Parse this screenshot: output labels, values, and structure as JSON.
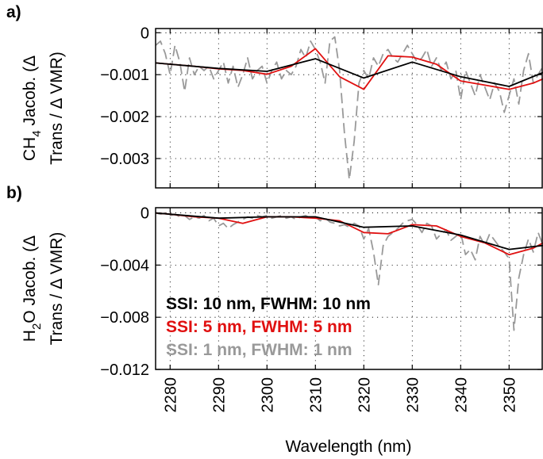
{
  "chart_data": [
    {
      "panel_label": "a)",
      "type": "line",
      "ylabel_line1": "CH",
      "ylabel_sub": "4",
      "ylabel_line1_rest": " Jacob. (Δ",
      "ylabel_line2": "Trans / Δ VMR)",
      "xlim": [
        2277,
        2357
      ],
      "ylim": [
        -0.0037,
        0.0001
      ],
      "yticks": [
        0,
        -0.001,
        -0.002,
        -0.003
      ],
      "ytick_labels": [
        "0",
        "−0.001",
        "−0.002",
        "−0.003"
      ],
      "xticks": [
        2280,
        2290,
        2300,
        2310,
        2320,
        2330,
        2340,
        2350
      ],
      "grid": true,
      "series": [
        {
          "name": "SSI: 1 nm, FWHM: 1 nm",
          "color": "#999999",
          "dash": "dashed",
          "x": [
            2277,
            2278,
            2279,
            2280,
            2281,
            2282,
            2283,
            2284,
            2285,
            2286,
            2287,
            2288,
            2289,
            2290,
            2291,
            2292,
            2293,
            2294,
            2295,
            2296,
            2297,
            2298,
            2299,
            2300,
            2301,
            2302,
            2303,
            2304,
            2305,
            2306,
            2307,
            2308,
            2309,
            2310,
            2311,
            2312,
            2313,
            2314,
            2315,
            2316,
            2317,
            2318,
            2319,
            2320,
            2321,
            2322,
            2323,
            2324,
            2325,
            2326,
            2327,
            2328,
            2329,
            2330,
            2331,
            2332,
            2333,
            2334,
            2335,
            2336,
            2337,
            2338,
            2339,
            2340,
            2341,
            2342,
            2343,
            2344,
            2345,
            2346,
            2347,
            2348,
            2349,
            2350,
            2351,
            2352,
            2353,
            2354,
            2355,
            2356,
            2357
          ],
          "y": [
            -0.0003,
            -0.0002,
            -0.0005,
            -0.001,
            -0.0003,
            -0.0007,
            -0.0014,
            -0.0006,
            -0.001,
            -0.0008,
            -0.0009,
            -0.0008,
            -0.0011,
            -0.0009,
            -0.0007,
            -0.0012,
            -0.0008,
            -0.0013,
            -0.001,
            -0.0006,
            -0.0011,
            -0.0009,
            -0.0008,
            -0.0012,
            -0.0009,
            -0.0007,
            -0.0011,
            -0.0009,
            -0.001,
            -0.0008,
            -0.0004,
            -0.0006,
            -0.0002,
            -0.0004,
            -0.0007,
            -0.0012,
            -0.0002,
            -0.0001,
            -0.0009,
            -0.0024,
            -0.0035,
            -0.0026,
            -0.0012,
            -0.0009,
            -0.0011,
            -0.0006,
            -0.0008,
            -0.0005,
            -0.0004,
            -0.0006,
            -0.0007,
            -0.0005,
            -0.0003,
            -0.0005,
            -0.0007,
            -0.0006,
            -0.0004,
            -0.0008,
            -0.0006,
            -0.0009,
            -0.0007,
            -0.0011,
            -0.0009,
            -0.0016,
            -0.0009,
            -0.0012,
            -0.0015,
            -0.001,
            -0.0013,
            -0.0016,
            -0.0012,
            -0.0014,
            -0.0019,
            -0.0015,
            -0.0011,
            -0.0017,
            -0.0009,
            -0.0005,
            -0.0012,
            -0.001,
            -0.0008
          ]
        },
        {
          "name": "SSI: 5 nm, FWHM: 5 nm",
          "color": "#e01010",
          "dash": "solid",
          "x": [
            2277,
            2280,
            2285,
            2290,
            2295,
            2300,
            2305,
            2310,
            2315,
            2320,
            2325,
            2330,
            2335,
            2340,
            2345,
            2350,
            2355,
            2357
          ],
          "y": [
            -0.00072,
            -0.00075,
            -0.0008,
            -0.00086,
            -0.0009,
            -0.00099,
            -0.0008,
            -0.00038,
            -0.00105,
            -0.00135,
            -0.00055,
            -0.00058,
            -0.00075,
            -0.00115,
            -0.00125,
            -0.00135,
            -0.0012,
            -0.0011
          ]
        },
        {
          "name": "SSI: 10 nm, FWHM: 10 nm",
          "color": "#000000",
          "dash": "solid",
          "x": [
            2277,
            2280,
            2290,
            2300,
            2310,
            2320,
            2330,
            2340,
            2350,
            2357
          ],
          "y": [
            -0.00072,
            -0.00075,
            -0.00085,
            -0.00092,
            -0.00062,
            -0.00108,
            -0.0007,
            -0.00105,
            -0.00128,
            -0.00095
          ]
        }
      ]
    },
    {
      "panel_label": "b)",
      "type": "line",
      "ylabel_line1": "H",
      "ylabel_sub": "2",
      "ylabel_line1_rest": "O Jacob. (Δ",
      "ylabel_line2": "Trans / Δ VMR)",
      "xlim": [
        2277,
        2357
      ],
      "ylim": [
        -0.012,
        0.0004
      ],
      "yticks": [
        0,
        -0.004,
        -0.008,
        -0.012
      ],
      "ytick_labels": [
        "0",
        "−0.004",
        "−0.008",
        "−0.012"
      ],
      "xticks": [
        2280,
        2290,
        2300,
        2310,
        2320,
        2330,
        2340,
        2350
      ],
      "xtick_labels": [
        "2280",
        "2290",
        "2300",
        "2310",
        "2320",
        "2330",
        "2340",
        "2350"
      ],
      "xlabel": "Wavelength (nm)",
      "grid": true,
      "legend": "lower-left",
      "series": [
        {
          "name": "SSI: 1 nm, FWHM: 1 nm",
          "color": "#999999",
          "dash": "dashed",
          "x": [
            2277,
            2278,
            2279,
            2280,
            2281,
            2282,
            2283,
            2284,
            2285,
            2286,
            2287,
            2288,
            2289,
            2290,
            2291,
            2292,
            2293,
            2294,
            2295,
            2296,
            2297,
            2298,
            2299,
            2300,
            2301,
            2302,
            2303,
            2304,
            2305,
            2306,
            2307,
            2308,
            2309,
            2310,
            2311,
            2312,
            2313,
            2314,
            2315,
            2316,
            2317,
            2318,
            2319,
            2320,
            2321,
            2322,
            2323,
            2324,
            2325,
            2326,
            2327,
            2328,
            2329,
            2330,
            2331,
            2332,
            2333,
            2334,
            2335,
            2336,
            2337,
            2338,
            2339,
            2340,
            2341,
            2342,
            2343,
            2344,
            2345,
            2346,
            2347,
            2348,
            2349,
            2350,
            2351,
            2352,
            2353,
            2354,
            2355,
            2356,
            2357
          ],
          "y": [
            0.0,
            -0.0001,
            0.0,
            -0.0002,
            -0.0001,
            -0.0003,
            -0.0002,
            -0.0005,
            -0.0003,
            -0.0004,
            -0.0002,
            -0.0006,
            -0.0004,
            -0.001,
            -0.0008,
            -0.0012,
            -0.0009,
            -0.0007,
            -0.0005,
            -0.0003,
            -0.0004,
            -0.0002,
            -0.0003,
            -0.0002,
            -0.0004,
            -0.0003,
            -0.0002,
            -0.0004,
            -0.0003,
            -0.0005,
            -0.0003,
            -0.0002,
            -0.0004,
            -0.0003,
            -0.0006,
            -0.0004,
            -0.0007,
            -0.0008,
            -0.001,
            -0.0009,
            -0.0011,
            -0.0008,
            -0.001,
            -0.002,
            -0.0012,
            -0.003,
            -0.0055,
            -0.0025,
            -0.0018,
            -0.0015,
            -0.0012,
            -0.0008,
            -0.0006,
            -0.0005,
            -0.0009,
            -0.0015,
            -0.0008,
            -0.001,
            -0.002,
            -0.0016,
            -0.0013,
            -0.0021,
            -0.0018,
            -0.0015,
            -0.0032,
            -0.0028,
            -0.0036,
            -0.0018,
            -0.0025,
            -0.0016,
            -0.0021,
            -0.0026,
            -0.003,
            -0.0035,
            -0.009,
            -0.005,
            -0.0032,
            -0.002,
            -0.003,
            -0.0015,
            -0.0025
          ]
        },
        {
          "name": "SSI: 5 nm, FWHM: 5 nm",
          "color": "#e01010",
          "dash": "solid",
          "x": [
            2277,
            2280,
            2285,
            2290,
            2295,
            2300,
            2305,
            2310,
            2315,
            2320,
            2325,
            2330,
            2335,
            2340,
            2345,
            2350,
            2355,
            2357
          ],
          "y": [
            0.0,
            -0.0001,
            -0.0003,
            -0.0004,
            -0.0008,
            -0.0003,
            -0.0003,
            -0.0004,
            -0.0006,
            -0.0015,
            -0.0016,
            -0.0009,
            -0.001,
            -0.0018,
            -0.0023,
            -0.0032,
            -0.0027,
            -0.0023
          ]
        },
        {
          "name": "SSI: 10 nm, FWHM: 10 nm",
          "color": "#000000",
          "dash": "solid",
          "x": [
            2277,
            2280,
            2290,
            2300,
            2310,
            2320,
            2330,
            2340,
            2350,
            2357
          ],
          "y": [
            0.0,
            -0.0001,
            -0.0004,
            -0.0003,
            -0.0003,
            -0.0011,
            -0.001,
            -0.0017,
            -0.0028,
            -0.0025
          ]
        }
      ]
    }
  ]
}
